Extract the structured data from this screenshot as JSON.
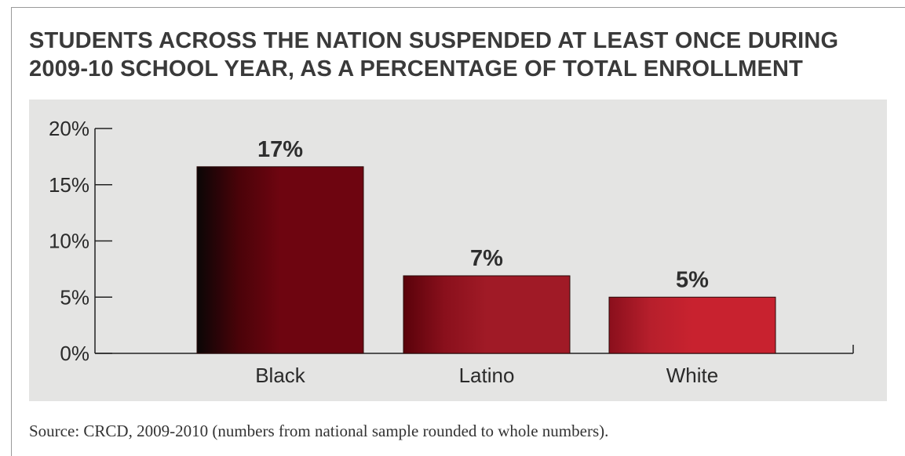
{
  "chart_data": {
    "type": "bar",
    "title": "STUDENTS ACROSS THE NATION SUSPENDED AT LEAST ONCE DURING 2009-10 SCHOOL YEAR, AS A PERCENTAGE OF TOTAL ENROLLMENT",
    "title_lines": [
      "STUDENTS ACROSS THE NATION SUSPENDED AT LEAST ONCE DURING",
      "2009-10 SCHOOL YEAR, AS A PERCENTAGE OF TOTAL ENROLLMENT"
    ],
    "categories": [
      "Black",
      "Latino",
      "White"
    ],
    "values": [
      16.6,
      6.9,
      5.0
    ],
    "data_labels": [
      "17%",
      "7%",
      "5%"
    ],
    "y_ticks": [
      0,
      5,
      10,
      15,
      20
    ],
    "y_tick_labels": [
      "0%",
      "5%",
      "10%",
      "15%",
      "20%"
    ],
    "ylim": [
      0,
      20
    ],
    "xlabel": "",
    "ylabel": "",
    "grid": false,
    "colors": {
      "background": "#e4e4e3",
      "bar_gradients": [
        [
          "#0a0606",
          "#4a0309",
          "#6e0510",
          "#6e0510"
        ],
        [
          "#5a020a",
          "#8a101c",
          "#a01a26",
          "#a01a26"
        ],
        [
          "#8a0f1c",
          "#b71f2c",
          "#c8222f",
          "#c8222f"
        ]
      ]
    }
  },
  "source": "Source: CRCD, 2009-2010 (numbers from national sample rounded to whole numbers)."
}
